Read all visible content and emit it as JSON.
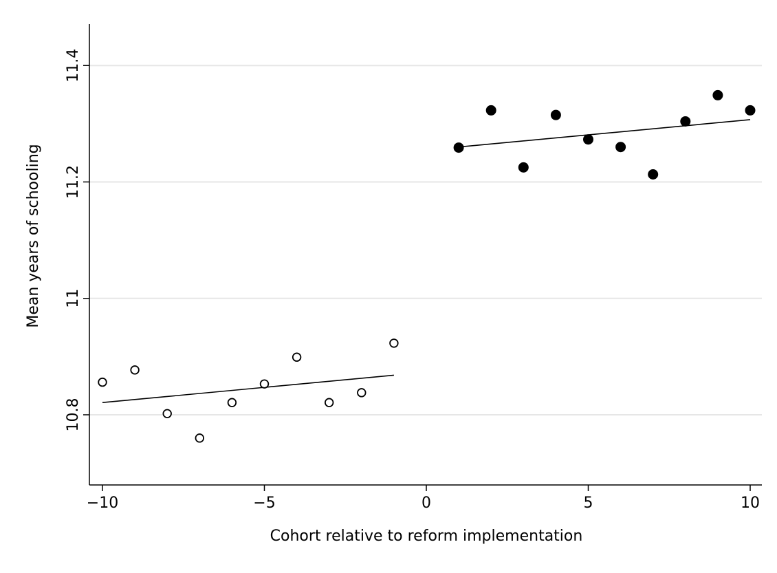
{
  "chart_data": {
    "type": "scatter",
    "title": "",
    "xlabel": "Cohort relative to reform implementation",
    "ylabel": "Mean years of schooling",
    "xlim": [
      -10.4,
      10.4
    ],
    "ylim": [
      10.62,
      11.46
    ],
    "xticks": [
      -10,
      -5,
      0,
      5,
      10
    ],
    "xtick_labels": [
      "−10",
      "−5",
      "0",
      "5",
      "10"
    ],
    "yticks": [
      10.8,
      11,
      11.2,
      11.4
    ],
    "ytick_labels": [
      "10.8",
      "11",
      "11.2",
      "11.4"
    ],
    "grid": "horizontal",
    "legend": "none",
    "series": [
      {
        "marker": "hollow-circle",
        "color": "#000000",
        "x": [
          -10,
          -9,
          -8,
          -7,
          -6,
          -5,
          -4,
          -3,
          -2,
          -1
        ],
        "y": [
          10.856,
          10.877,
          10.802,
          10.76,
          10.821,
          10.853,
          10.899,
          10.821,
          10.838,
          10.923
        ]
      },
      {
        "marker": "filled-circle",
        "color": "#000000",
        "x": [
          1,
          2,
          3,
          4,
          5,
          6,
          7,
          8,
          9,
          10
        ],
        "y": [
          11.259,
          11.323,
          11.225,
          11.315,
          11.273,
          11.26,
          11.213,
          11.304,
          11.349,
          11.323
        ]
      }
    ],
    "fit_lines": [
      {
        "x": [
          -10,
          -1
        ],
        "y": [
          10.821,
          10.868
        ]
      },
      {
        "x": [
          1,
          10
        ],
        "y": [
          11.26,
          11.307
        ]
      }
    ]
  }
}
